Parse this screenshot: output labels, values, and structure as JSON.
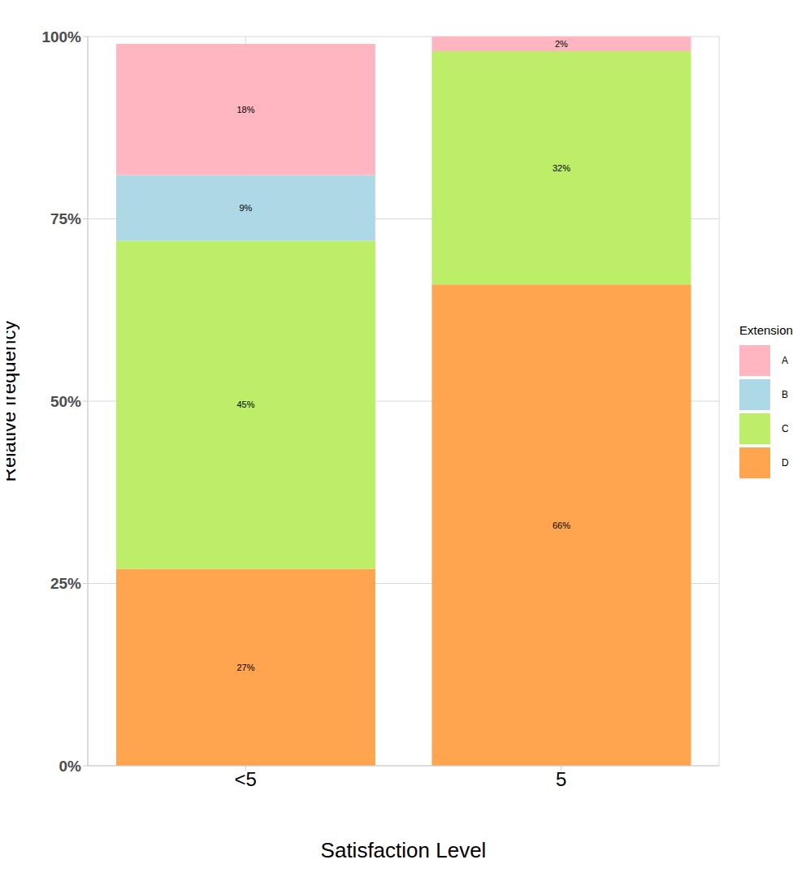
{
  "chart_data": {
    "type": "bar",
    "stacked": true,
    "x_label": "Satisfaction Level",
    "y_label": "Relative frequency",
    "categories": [
      "<5",
      "5"
    ],
    "ylim": [
      0,
      100
    ],
    "yticks": [
      {
        "value": 0,
        "label": "0%"
      },
      {
        "value": 25,
        "label": "25%"
      },
      {
        "value": 50,
        "label": "50%"
      },
      {
        "value": 75,
        "label": "75%"
      },
      {
        "value": 100,
        "label": "100%"
      }
    ],
    "grid": true,
    "legend": "right",
    "legend_title": "Extension",
    "data_labels": true,
    "series": [
      {
        "name": "A",
        "color": "#FFB6C1",
        "values": [
          18,
          2
        ],
        "value_labels": [
          "18%",
          "2%"
        ]
      },
      {
        "name": "B",
        "color": "#ADD8E6",
        "values": [
          9,
          null
        ],
        "value_labels": [
          "9%",
          null
        ]
      },
      {
        "name": "C",
        "color": "#BCEE68",
        "values": [
          45,
          32
        ],
        "value_labels": [
          "45%",
          "32%"
        ]
      },
      {
        "name": "D",
        "color": "#FFA54F",
        "values": [
          27,
          66
        ],
        "value_labels": [
          "27%",
          "66%"
        ]
      }
    ]
  }
}
